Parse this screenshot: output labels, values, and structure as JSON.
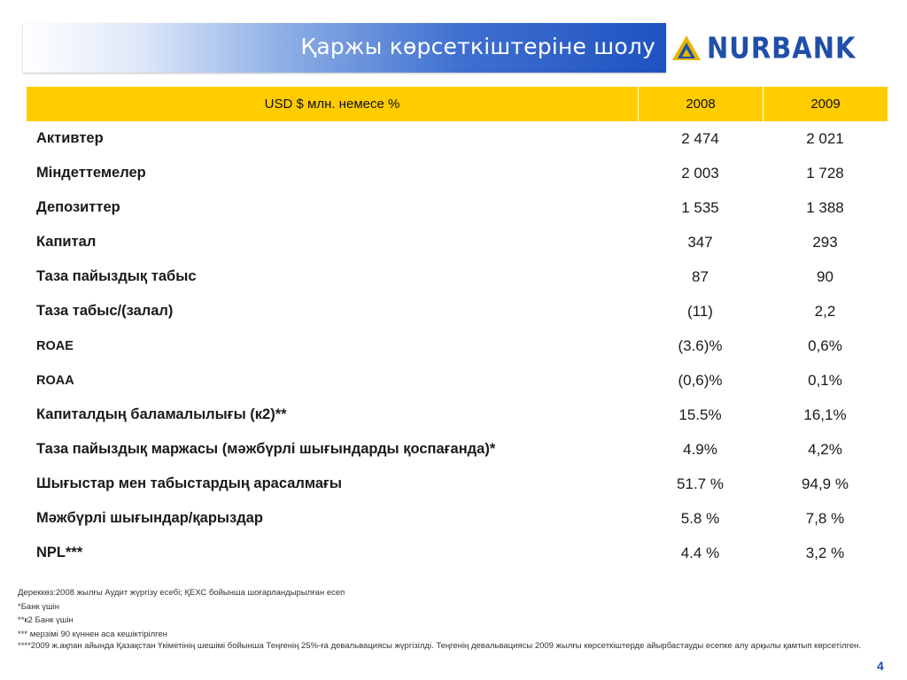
{
  "header": {
    "title": "Қаржы көрсеткіштеріне шолу",
    "logo_text": "NURBANK",
    "logo_icon": "triangle-logo-icon"
  },
  "table": {
    "header_label": "USD $ млн. немесе %",
    "years": [
      "2008",
      "2009"
    ],
    "rows": [
      {
        "label": "Активтер",
        "v2008": "2 474",
        "v2009": "2 021"
      },
      {
        "label": "Міндеттемелер",
        "v2008": "2 003",
        "v2009": "1 728"
      },
      {
        "label": "Депозиттер",
        "v2008": "1 535",
        "v2009": "1 388"
      },
      {
        "label": "Капитал",
        "v2008": "347",
        "v2009": "293"
      },
      {
        "label": "Таза пайыздық табыс",
        "v2008": "87",
        "v2009": "90"
      },
      {
        "label": "Таза табыс/(залал)",
        "v2008": "(11)",
        "v2009": "2,2"
      },
      {
        "label": "ROAE",
        "v2008": "(3.6)%",
        "v2009": "0,6%"
      },
      {
        "label": "ROAA",
        "v2008": "(0,6)%",
        "v2009": "0,1%"
      },
      {
        "label": "Капиталдың баламалылығы (к2)**",
        "v2008": "15.5%",
        "v2009": "16,1%"
      },
      {
        "label": "Таза пайыздық маржасы (мәжбүрлі шығындарды қоспағанда)*",
        "v2008": "4.9%",
        "v2009": "4,2%"
      },
      {
        "label": "Шығыстар мен табыстардың арасалмағы",
        "v2008": "51.7 %",
        "v2009": "94,9 %"
      },
      {
        "label": "Мәжбүрлі шығындар/қарыздар",
        "v2008": "5.8 %",
        "v2009": "7,8 %"
      },
      {
        "label": "NPL***",
        "v2008": "4.4 %",
        "v2009": "3,2 %"
      }
    ]
  },
  "footnotes": [
    "Дереккөз:2008 жылғы Аудит жүргізу есебі; ҚЕХС бойынша шоғарландырылған есеп",
    "*Банк үшін",
    "**к2 Банк үшін",
    "*** мерзімі 90 күннен аса кешіктірілген",
    "****2009 ж.ақпан айында Қазақстан Үкіметінің шешімі бойынша Теңгенің 25%-ға девальвациясы жүргізілді. Теңгенің девальвациясы 2009 жылғы көрсеткіштерде айырбастауды есепке алу арқылы қамтып көрсетілген."
  ],
  "page_number": "4",
  "colors": {
    "header_yellow": "#ffcc00",
    "title_blue": "#1f52c0",
    "logo_blue": "#1f4fa8",
    "logo_gold": "#e8b400"
  }
}
